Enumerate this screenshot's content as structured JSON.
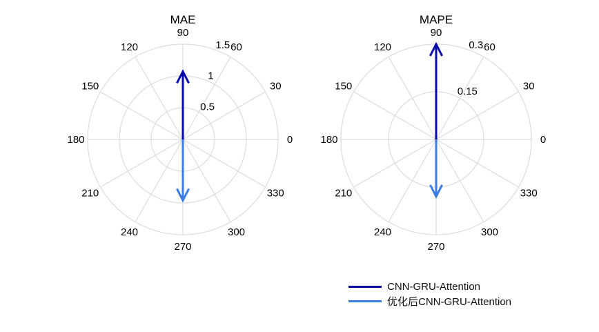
{
  "chart_data": [
    {
      "type": "polar-compass",
      "title": "MAE",
      "angle_ticks": [
        "0",
        "30",
        "60",
        "90",
        "120",
        "150",
        "180",
        "210",
        "240",
        "270",
        "300",
        "330"
      ],
      "radial_ticks": [
        "0.5",
        "1",
        "1.5"
      ],
      "rlim": [
        0,
        1.5
      ],
      "series": [
        {
          "name": "CNN-GRU-Attention",
          "angle": 90,
          "r": 1.07
        },
        {
          "name": "优化后CNN-GRU-Attention",
          "angle": 270,
          "r": 0.96
        }
      ]
    },
    {
      "type": "polar-compass",
      "title": "MAPE",
      "angle_ticks": [
        "0",
        "30",
        "60",
        "90",
        "120",
        "150",
        "180",
        "210",
        "240",
        "270",
        "300",
        "330"
      ],
      "radial_ticks": [
        "0.15",
        "0.3"
      ],
      "rlim": [
        0,
        0.3
      ],
      "series": [
        {
          "name": "CNN-GRU-Attention",
          "angle": 90,
          "r": 0.3
        },
        {
          "name": "优化后CNN-GRU-Attention",
          "angle": 270,
          "r": 0.18
        }
      ]
    }
  ],
  "series_colors": [
    "#0a0aa8",
    "#3b7de0"
  ],
  "legend": {
    "items": [
      "CNN-GRU-Attention",
      "优化后CNN-GRU-Attention"
    ],
    "placement": "bottom-right"
  }
}
